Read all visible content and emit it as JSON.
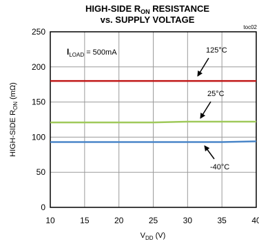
{
  "chart_data": {
    "type": "line",
    "title_line1": {
      "main": "HIGH-SIDE R",
      "sub": "ON",
      "rest": " RESISTANCE"
    },
    "title_line2": "vs. SUPPLY VOLTAGE",
    "figure_id": "toc02",
    "xlabel": {
      "main": "V",
      "sub": "DD",
      "rest": " (V)"
    },
    "ylabel": {
      "main": "HIGH-SIDE R",
      "sub": "ON",
      "rest": " (mΩ)"
    },
    "xlim": [
      10,
      40
    ],
    "ylim": [
      0,
      250
    ],
    "xticks": [
      "10",
      "15",
      "20",
      "25",
      "30",
      "35",
      "40"
    ],
    "yticks": [
      "0",
      "50",
      "100",
      "150",
      "200",
      "250"
    ],
    "grid": true,
    "condition": {
      "main": "I",
      "sub": "LOAD",
      "rest": " = 500mA"
    },
    "series": [
      {
        "name": "125°C",
        "color": "#c01818",
        "x": [
          10,
          15,
          20,
          25,
          30,
          35,
          40
        ],
        "y": [
          180,
          180,
          180,
          180,
          180,
          180,
          180
        ]
      },
      {
        "name": "25°C",
        "color": "#9fc95a",
        "x": [
          10,
          15,
          20,
          25,
          30,
          35,
          40
        ],
        "y": [
          121,
          121,
          121,
          121,
          122,
          122,
          122
        ]
      },
      {
        "name": "-40°C",
        "color": "#4a86c8",
        "x": [
          10,
          15,
          20,
          25,
          30,
          35,
          40
        ],
        "y": [
          93,
          93,
          93,
          93,
          93,
          93,
          94
        ]
      }
    ]
  }
}
